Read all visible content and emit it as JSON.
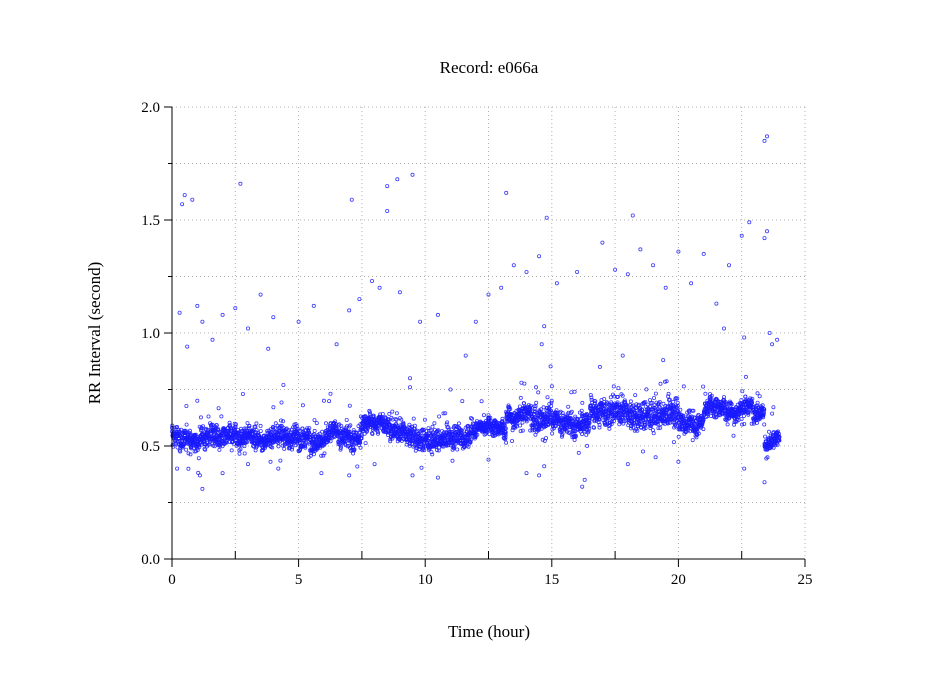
{
  "chart_data": {
    "type": "scatter",
    "title": "Record:  e066a",
    "xlabel": "Time (hour)",
    "ylabel": "RR Interval (second)",
    "xlim": [
      0,
      25
    ],
    "ylim": [
      0,
      2.0
    ],
    "xticks": [
      "0",
      "5",
      "10",
      "15",
      "20",
      "25"
    ],
    "xtick_values": [
      0,
      5,
      10,
      15,
      20,
      25
    ],
    "yticks": [
      "0.0",
      "0.5",
      "1.0",
      "1.5",
      "2.0"
    ],
    "ytick_values": [
      0,
      0.5,
      1.0,
      1.5,
      2.0
    ],
    "grid": true,
    "grid_style": "dotted",
    "marker": "open-circle",
    "color": "#1a1aff",
    "dense_band_segments": [
      {
        "x0": 0.0,
        "x1": 7.5,
        "mean": 0.54,
        "spread": 0.07
      },
      {
        "x0": 7.5,
        "x1": 8.6,
        "mean": 0.6,
        "spread": 0.06
      },
      {
        "x0": 8.6,
        "x1": 9.6,
        "mean": 0.56,
        "spread": 0.07
      },
      {
        "x0": 9.6,
        "x1": 11.8,
        "mean": 0.53,
        "spread": 0.07
      },
      {
        "x0": 11.8,
        "x1": 13.2,
        "mean": 0.58,
        "spread": 0.05
      },
      {
        "x0": 13.2,
        "x1": 14.3,
        "mean": 0.64,
        "spread": 0.06
      },
      {
        "x0": 14.3,
        "x1": 15.0,
        "mean": 0.63,
        "spread": 0.1
      },
      {
        "x0": 15.0,
        "x1": 16.5,
        "mean": 0.6,
        "spread": 0.07
      },
      {
        "x0": 16.5,
        "x1": 18.0,
        "mean": 0.65,
        "spread": 0.09
      },
      {
        "x0": 18.0,
        "x1": 20.0,
        "mean": 0.64,
        "spread": 0.09
      },
      {
        "x0": 20.0,
        "x1": 21.0,
        "mean": 0.6,
        "spread": 0.07
      },
      {
        "x0": 21.0,
        "x1": 23.4,
        "mean": 0.67,
        "spread": 0.06
      },
      {
        "x0": 23.4,
        "x1": 24.0,
        "mean": 0.5,
        "spread": 0.06
      }
    ],
    "points": [
      [
        0.3,
        1.09
      ],
      [
        0.4,
        1.57
      ],
      [
        0.5,
        1.61
      ],
      [
        0.8,
        1.59
      ],
      [
        2.7,
        1.66
      ],
      [
        7.1,
        1.59
      ],
      [
        8.5,
        1.65
      ],
      [
        8.5,
        1.54
      ],
      [
        8.9,
        1.68
      ],
      [
        9.5,
        1.7
      ],
      [
        13.2,
        1.62
      ],
      [
        14.8,
        1.51
      ],
      [
        18.2,
        1.52
      ],
      [
        22.8,
        1.49
      ],
      [
        23.4,
        1.85
      ],
      [
        23.5,
        1.87
      ],
      [
        23.5,
        1.45
      ],
      [
        23.4,
        1.42
      ],
      [
        0.6,
        0.94
      ],
      [
        1.0,
        1.12
      ],
      [
        1.2,
        1.05
      ],
      [
        1.6,
        0.97
      ],
      [
        2.0,
        1.08
      ],
      [
        2.5,
        1.11
      ],
      [
        3.0,
        1.02
      ],
      [
        3.5,
        1.17
      ],
      [
        4.0,
        1.07
      ],
      [
        5.0,
        1.05
      ],
      [
        5.6,
        1.12
      ],
      [
        6.5,
        0.95
      ],
      [
        7.0,
        1.1
      ],
      [
        7.4,
        1.15
      ],
      [
        7.9,
        1.23
      ],
      [
        8.2,
        1.2
      ],
      [
        9.0,
        1.18
      ],
      [
        9.8,
        1.05
      ],
      [
        10.5,
        1.08
      ],
      [
        11.6,
        0.9
      ],
      [
        12.0,
        1.05
      ],
      [
        12.5,
        1.17
      ],
      [
        13.0,
        1.2
      ],
      [
        13.5,
        1.3
      ],
      [
        14.0,
        1.27
      ],
      [
        14.5,
        1.34
      ],
      [
        15.2,
        1.22
      ],
      [
        16.0,
        1.27
      ],
      [
        17.0,
        1.4
      ],
      [
        17.5,
        1.28
      ],
      [
        18.0,
        1.26
      ],
      [
        18.5,
        1.37
      ],
      [
        19.0,
        1.3
      ],
      [
        19.5,
        1.2
      ],
      [
        20.0,
        1.36
      ],
      [
        20.5,
        1.22
      ],
      [
        21.0,
        1.35
      ],
      [
        21.5,
        1.13
      ],
      [
        22.0,
        1.3
      ],
      [
        22.5,
        1.43
      ],
      [
        23.6,
        1.0
      ],
      [
        23.7,
        0.95
      ],
      [
        23.9,
        0.97
      ],
      [
        21.8,
        1.02
      ],
      [
        3.8,
        0.93
      ],
      [
        9.4,
        0.8
      ],
      [
        0.2,
        0.4
      ],
      [
        1.2,
        0.31
      ],
      [
        1.1,
        0.37
      ],
      [
        2.0,
        0.38
      ],
      [
        3.0,
        0.42
      ],
      [
        4.2,
        0.4
      ],
      [
        5.9,
        0.38
      ],
      [
        7.0,
        0.37
      ],
      [
        8.0,
        0.42
      ],
      [
        9.5,
        0.37
      ],
      [
        10.5,
        0.36
      ],
      [
        12.5,
        0.44
      ],
      [
        14.0,
        0.38
      ],
      [
        14.5,
        0.37
      ],
      [
        14.7,
        0.41
      ],
      [
        16.2,
        0.32
      ],
      [
        16.3,
        0.35
      ],
      [
        18.0,
        0.42
      ],
      [
        19.1,
        0.45
      ],
      [
        20.0,
        0.43
      ],
      [
        22.6,
        0.4
      ],
      [
        23.4,
        0.34
      ],
      [
        1.0,
        0.7
      ],
      [
        2.8,
        0.73
      ],
      [
        4.4,
        0.77
      ],
      [
        6.0,
        0.7
      ],
      [
        9.4,
        0.76
      ],
      [
        11.0,
        0.75
      ],
      [
        13.8,
        0.78
      ],
      [
        14.6,
        0.95
      ],
      [
        14.7,
        1.03
      ],
      [
        16.9,
        0.85
      ],
      [
        17.8,
        0.9
      ],
      [
        22.6,
        0.98
      ],
      [
        19.4,
        0.88
      ],
      [
        15.9,
        0.74
      ]
    ]
  }
}
